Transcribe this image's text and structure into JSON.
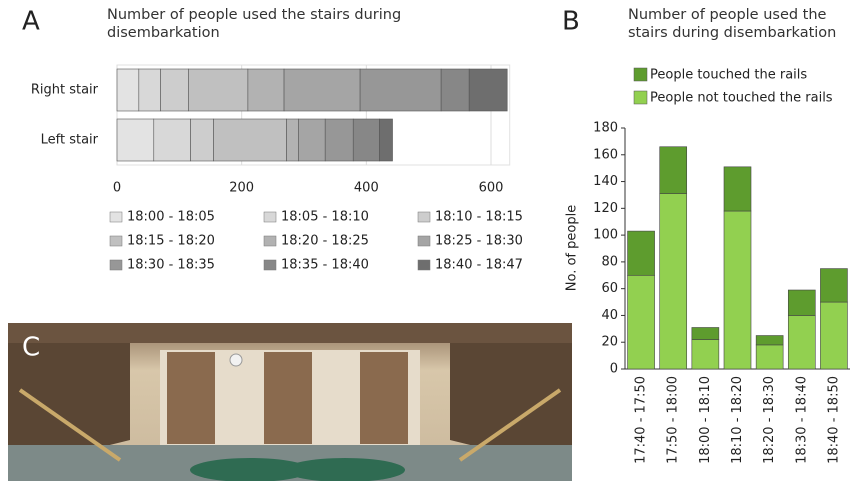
{
  "chart_data": [
    {
      "type": "barh",
      "panel": "A",
      "title": "Number of people used the stairs during disembarkation",
      "stacked": true,
      "categories": [
        "Right stair",
        "Left stair"
      ],
      "series": [
        {
          "name": "18:00 - 18:05",
          "color": "#e3e3e3",
          "values": [
            35,
            59
          ]
        },
        {
          "name": "18:05 - 18:10",
          "color": "#d8d8d8",
          "values": [
            35,
            59
          ]
        },
        {
          "name": "18:10 - 18:15",
          "color": "#cdcdcd",
          "values": [
            45,
            37
          ]
        },
        {
          "name": "18:15 - 18:20",
          "color": "#c0c0c0",
          "values": [
            95,
            117
          ]
        },
        {
          "name": "18:20 - 18:25",
          "color": "#b2b2b2",
          "values": [
            58,
            19
          ]
        },
        {
          "name": "18:25 - 18:30",
          "color": "#a5a5a5",
          "values": [
            122,
            43
          ]
        },
        {
          "name": "18:30 - 18:35",
          "color": "#979797",
          "values": [
            130,
            45
          ]
        },
        {
          "name": "18:35 - 18:40",
          "color": "#878787",
          "values": [
            45,
            42
          ]
        },
        {
          "name": "18:40 - 18:47",
          "color": "#6e6e6e",
          "values": [
            61,
            21
          ]
        }
      ],
      "xlim": [
        0,
        630
      ],
      "xticks": [
        0,
        200,
        400,
        600
      ],
      "grid": true,
      "legend": "bottom"
    },
    {
      "type": "bar",
      "panel": "B",
      "title": "Number of people used the stairs during disembarkation",
      "stacked": true,
      "categories": [
        "17:40 - 17:50",
        "17:50 - 18:00",
        "18:00 - 18:10",
        "18:10 - 18:20",
        "18:20 - 18:30",
        "18:30 - 18:40",
        "18:40 - 18:50"
      ],
      "y_label": "No. of people",
      "series": [
        {
          "name": "People not touched the rails",
          "color": "#92d050",
          "values": [
            70,
            131,
            22,
            118,
            18,
            40,
            50
          ]
        },
        {
          "name": "People touched the rails",
          "color": "#5e9c2e",
          "values": [
            33,
            35,
            9,
            33,
            7,
            19,
            25
          ]
        }
      ],
      "ylim": [
        0,
        180
      ],
      "yticks": [
        0,
        20,
        40,
        60,
        80,
        100,
        120,
        140,
        160,
        180
      ],
      "grid": false,
      "legend": "top"
    }
  ],
  "photo": {
    "panel": "C"
  }
}
